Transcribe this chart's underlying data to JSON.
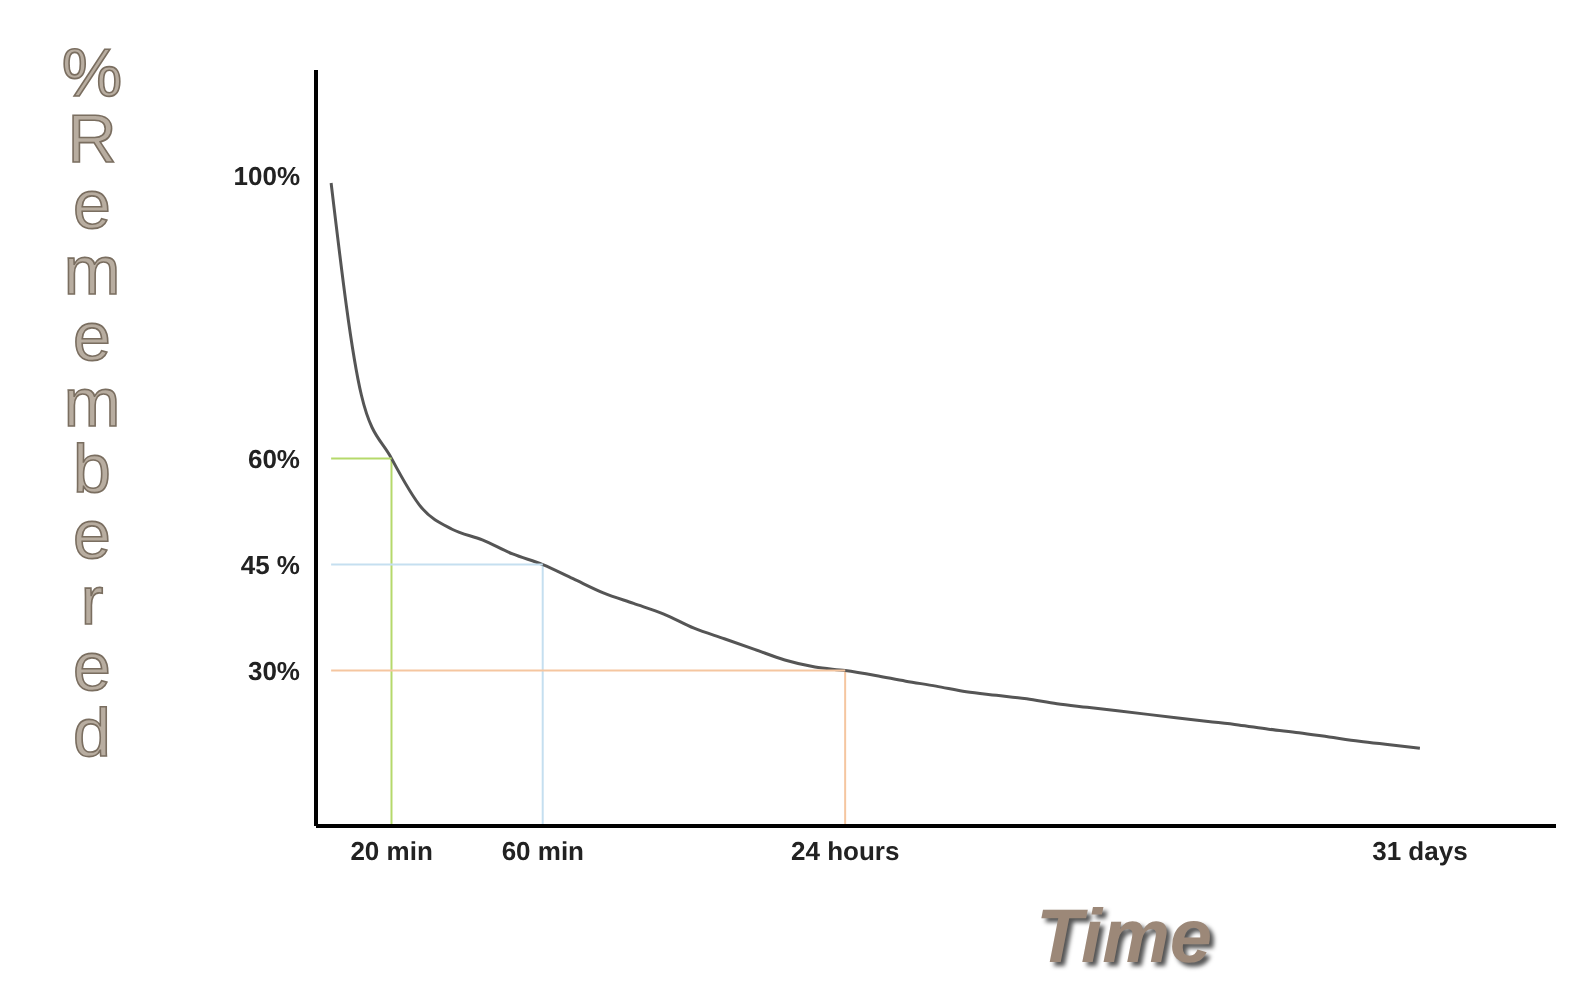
{
  "chart_data": {
    "type": "line",
    "xlabel": "Time",
    "ylabel": "% Remembered",
    "categories": [
      null,
      null,
      "20 min",
      null,
      null,
      null,
      null,
      "60 min",
      null,
      null,
      null,
      null,
      null,
      null,
      null,
      null,
      null,
      "24 hours",
      null,
      null,
      null,
      null,
      null,
      null,
      null,
      null,
      null,
      null,
      null,
      null,
      null,
      null,
      null,
      null,
      null,
      null,
      "31 days",
      null,
      null,
      null,
      null
    ],
    "ylim": [
      8,
      115
    ],
    "yticks": [
      {
        "value": 100,
        "label": "100%"
      },
      {
        "value": 60,
        "label": "60%"
      },
      {
        "value": 45,
        "label": "45 %"
      },
      {
        "value": 30,
        "label": "30%"
      }
    ],
    "marker": "none",
    "line_style": "solid",
    "series": [
      {
        "color": "#555555",
        "values": [
          99,
          69,
          60,
          53,
          50,
          48.5,
          46.5,
          45,
          43,
          41,
          39.5,
          38,
          36,
          34.5,
          33,
          31.5,
          30.5,
          30,
          29.3,
          28.5,
          27.8,
          27,
          26.5,
          26,
          25.3,
          24.8,
          24.3,
          23.8,
          23.3,
          22.8,
          22.3,
          21.7,
          21.2,
          20.6,
          20,
          19.5,
          19,
          null,
          null,
          null,
          null
        ]
      },
      {
        "color": "#b5d96b",
        "values": [
          60,
          60,
          60,
          null,
          null,
          null,
          null,
          null,
          null,
          null,
          null,
          null,
          null,
          null,
          null,
          null,
          null,
          null,
          null,
          null,
          null,
          null,
          null,
          null,
          null,
          null,
          null,
          null,
          null,
          null,
          null,
          null,
          null,
          null,
          null,
          null,
          null,
          null,
          null,
          null,
          null
        ]
      },
      {
        "color": "#c5dff0",
        "values": [
          45,
          45,
          45,
          45,
          45,
          45,
          45,
          45,
          null,
          null,
          null,
          null,
          null,
          null,
          null,
          null,
          null,
          null,
          null,
          null,
          null,
          null,
          null,
          null,
          null,
          null,
          null,
          null,
          null,
          null,
          null,
          null,
          null,
          null,
          null,
          null,
          null,
          null,
          null,
          null,
          null
        ]
      },
      {
        "color": "#f5c6a0",
        "values": [
          30,
          30,
          30,
          30,
          30,
          30,
          30,
          30,
          30,
          30,
          30,
          30,
          30,
          30,
          30,
          30,
          30,
          30,
          null,
          null,
          null,
          null,
          null,
          null,
          null,
          null,
          null,
          null,
          null,
          null,
          null,
          null,
          null,
          null,
          null,
          null,
          null,
          null,
          null,
          null,
          null
        ]
      },
      {
        "type": "bar",
        "colors": [
          null,
          null,
          "#b5d96b",
          null,
          null,
          null,
          null,
          "#c5dff0",
          null,
          null,
          null,
          null,
          null,
          null,
          null,
          null,
          null,
          "#f5c6a0",
          null,
          null,
          null,
          null,
          null,
          null,
          null,
          null,
          null,
          null,
          null,
          null,
          null,
          null,
          null,
          null,
          null,
          null,
          null,
          null,
          null,
          null,
          null
        ],
        "values": [
          null,
          null,
          60,
          null,
          null,
          null,
          null,
          45,
          null,
          null,
          null,
          null,
          null,
          null,
          null,
          null,
          null,
          30,
          null,
          null,
          null,
          null,
          null,
          null,
          null,
          null,
          null,
          null,
          null,
          null,
          null,
          null,
          null,
          null,
          null,
          null,
          null,
          null,
          null,
          null,
          null
        ]
      }
    ]
  }
}
